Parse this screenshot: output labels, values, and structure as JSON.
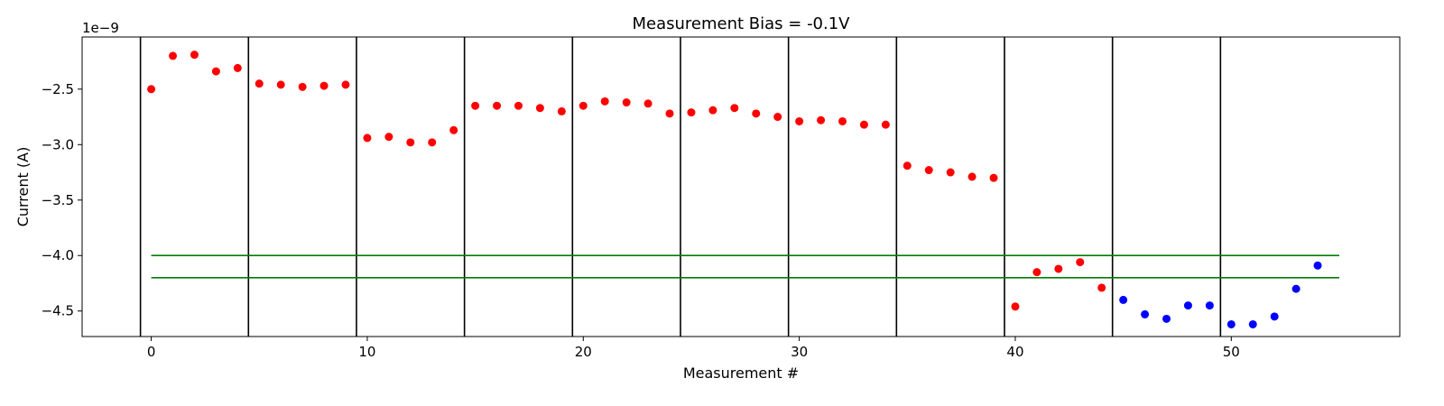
{
  "chart_data": {
    "type": "scatter",
    "title": "Measurement Bias = -0.1V",
    "xlabel": "Measurement #",
    "ylabel": "Current (A)",
    "y_offset_text": "1e−9",
    "xlim": [
      -3.2,
      57.8
    ],
    "ylim": [
      -4.73,
      -2.03
    ],
    "xticks": [
      0,
      10,
      20,
      30,
      40,
      50
    ],
    "xtick_labels": [
      "0",
      "10",
      "20",
      "30",
      "40",
      "50"
    ],
    "yticks": [
      -2.5,
      -3.0,
      -3.5,
      -4.0,
      -4.5
    ],
    "ytick_labels": [
      "−2.5",
      "−3.0",
      "−3.5",
      "−4.0",
      "−4.5"
    ],
    "grid": false,
    "legend": "none",
    "series": [
      {
        "color": "#ff0000",
        "x": [
          0,
          1,
          2,
          3,
          4,
          5,
          6,
          7,
          8,
          9,
          10,
          11,
          12,
          13,
          14,
          15,
          16,
          17,
          18,
          19,
          20,
          21,
          22,
          23,
          24,
          25,
          26,
          27,
          28,
          29,
          30,
          31,
          32,
          33,
          34,
          35,
          36,
          37,
          38,
          39,
          40,
          41,
          42,
          43,
          44
        ],
        "y": [
          -2.5,
          -2.2,
          -2.19,
          -2.34,
          -2.31,
          -2.45,
          -2.46,
          -2.48,
          -2.47,
          -2.46,
          -2.94,
          -2.93,
          -2.98,
          -2.98,
          -2.87,
          -2.65,
          -2.65,
          -2.65,
          -2.67,
          -2.7,
          -2.65,
          -2.61,
          -2.62,
          -2.63,
          -2.72,
          -2.71,
          -2.69,
          -2.67,
          -2.72,
          -2.75,
          -2.79,
          -2.78,
          -2.79,
          -2.82,
          -2.82,
          -3.19,
          -3.23,
          -3.25,
          -3.29,
          -3.3,
          -4.46,
          -4.15,
          -4.12,
          -4.06,
          -4.29
        ]
      },
      {
        "color": "#0000ff",
        "x": [
          45,
          46,
          47,
          48,
          49,
          50,
          51,
          52,
          53,
          54
        ],
        "y": [
          -4.4,
          -4.53,
          -4.57,
          -4.45,
          -4.45,
          -4.62,
          -4.62,
          -4.55,
          -4.3,
          -4.09
        ]
      }
    ],
    "vertical_lines": {
      "color": "#000000",
      "x": [
        -0.5,
        4.5,
        9.5,
        14.5,
        19.5,
        24.5,
        29.5,
        34.5,
        39.5,
        44.5,
        49.5
      ]
    },
    "horizontal_lines": {
      "color": "#007f00",
      "segments": [
        {
          "y": -4.0,
          "x_start": 0,
          "x_end": 55
        },
        {
          "y": -4.2,
          "x_start": 0,
          "x_end": 55
        }
      ]
    }
  }
}
